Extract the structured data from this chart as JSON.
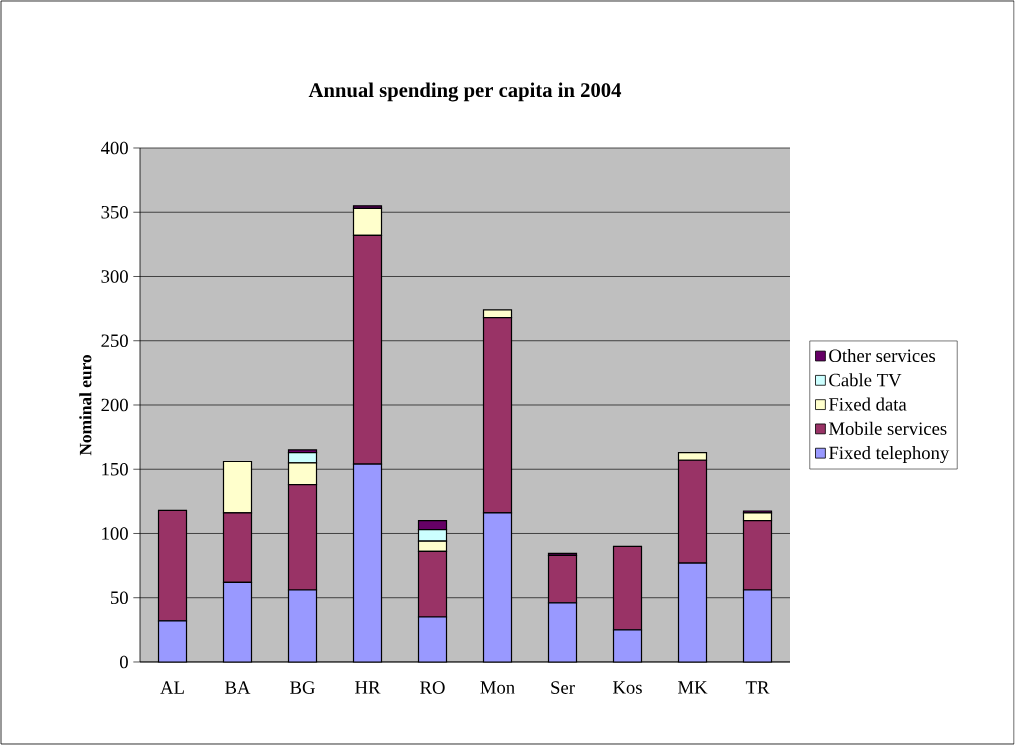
{
  "chart_data": {
    "type": "bar",
    "stacked": true,
    "title": "Annual spending per capita in 2004",
    "ylabel": "Nominal euro",
    "categories": [
      "AL",
      "BA",
      "BG",
      "HR",
      "RO",
      "Mon",
      "Ser",
      "Kos",
      "MK",
      "TR"
    ],
    "series": [
      {
        "name": "Fixed telephony",
        "color": "#9999ff",
        "values": [
          32,
          62,
          56,
          154,
          35,
          116,
          46,
          25,
          77,
          56
        ]
      },
      {
        "name": "Mobile services",
        "color": "#993366",
        "values": [
          86,
          54,
          82,
          178,
          51,
          152,
          37,
          65,
          80,
          54
        ]
      },
      {
        "name": "Fixed data",
        "color": "#ffffcc",
        "values": [
          0,
          40,
          17,
          21,
          8,
          6,
          0,
          0,
          6,
          6
        ]
      },
      {
        "name": "Cable TV",
        "color": "#ccffff",
        "values": [
          0,
          0,
          8,
          0,
          9,
          0,
          0,
          0,
          0,
          0
        ]
      },
      {
        "name": "Other services",
        "color": "#660066",
        "values": [
          0,
          0,
          2,
          2,
          7,
          0,
          1.5,
          0,
          0,
          1.5
        ]
      }
    ],
    "ylim": [
      0,
      400
    ],
    "yticks": [
      0,
      50,
      100,
      150,
      200,
      250,
      300,
      350,
      400
    ],
    "grid": "y",
    "legend": "right"
  }
}
